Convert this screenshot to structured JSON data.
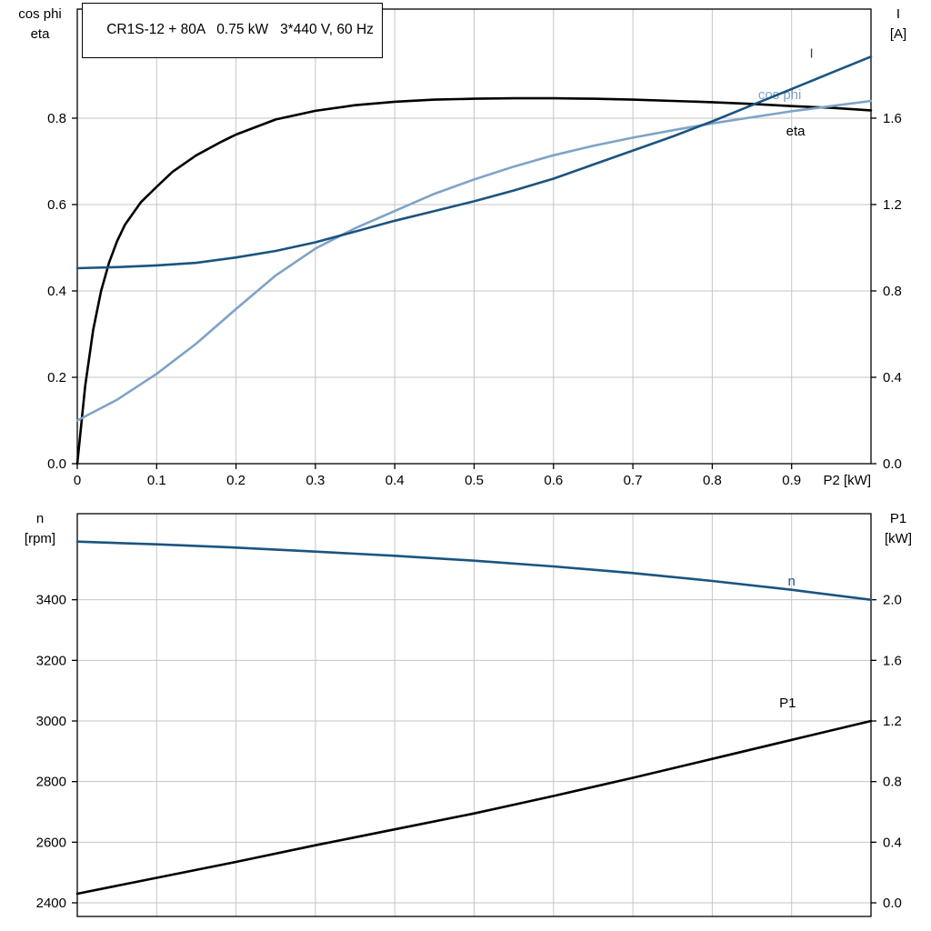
{
  "title_box": {
    "text": "CR1S-12 + 80A   0.75 kW   3*440 V, 60 Hz"
  },
  "colors": {
    "dark_blue": "#1b5480",
    "light_blue": "#7fa3c8",
    "black": "#000000",
    "grid": "#c6c6c6",
    "frame": "#000000"
  },
  "chart_data": [
    {
      "type": "line",
      "id": "motor-electrical",
      "x": {
        "min": 0,
        "max": 1.0,
        "axis_label": "P2 [kW]",
        "ticks": [
          0,
          0.1,
          0.2,
          0.3,
          0.4,
          0.5,
          0.6,
          0.7,
          0.8,
          0.9
        ],
        "labels": [
          "0",
          "0.1",
          "0.2",
          "0.3",
          "0.4",
          "0.5",
          "0.6",
          "0.7",
          "0.8",
          "0.9"
        ]
      },
      "left": {
        "title_lines": [
          "cos phi",
          "eta"
        ],
        "min": 0,
        "max": 1.0526,
        "ticks": [
          0,
          0.2,
          0.4,
          0.6,
          0.8
        ],
        "labels": [
          "0.0",
          "0.2",
          "0.4",
          "0.6",
          "0.8"
        ]
      },
      "right": {
        "title_lines": [
          "I",
          "[A]"
        ],
        "min": 0,
        "max": 2.105,
        "ticks": [
          0,
          0.4,
          0.8,
          1.2,
          1.6
        ],
        "labels": [
          "0.0",
          "0.4",
          "0.8",
          "1.2",
          "1.6"
        ]
      },
      "series": [
        {
          "name": "eta",
          "label": "eta",
          "axis": "left",
          "color": "black",
          "label_pos": [
            0.905,
            0.77
          ],
          "points": [
            [
              0,
              0
            ],
            [
              0.01,
              0.18
            ],
            [
              0.02,
              0.31
            ],
            [
              0.03,
              0.4
            ],
            [
              0.04,
              0.465
            ],
            [
              0.05,
              0.515
            ],
            [
              0.06,
              0.553
            ],
            [
              0.08,
              0.605
            ],
            [
              0.1,
              0.641
            ],
            [
              0.12,
              0.676
            ],
            [
              0.15,
              0.714
            ],
            [
              0.18,
              0.744
            ],
            [
              0.2,
              0.762
            ],
            [
              0.25,
              0.797
            ],
            [
              0.3,
              0.817
            ],
            [
              0.35,
              0.83
            ],
            [
              0.4,
              0.838
            ],
            [
              0.45,
              0.843
            ],
            [
              0.5,
              0.845
            ],
            [
              0.55,
              0.846
            ],
            [
              0.6,
              0.846
            ],
            [
              0.65,
              0.845
            ],
            [
              0.7,
              0.843
            ],
            [
              0.75,
              0.84
            ],
            [
              0.8,
              0.837
            ],
            [
              0.85,
              0.833
            ],
            [
              0.9,
              0.828
            ],
            [
              0.95,
              0.824
            ],
            [
              1.0,
              0.818
            ]
          ]
        },
        {
          "name": "cos-phi",
          "label": "cos phi",
          "axis": "left",
          "color": "light_blue",
          "label_pos": [
            0.885,
            0.855
          ],
          "points": [
            [
              0,
              0.1
            ],
            [
              0.05,
              0.148
            ],
            [
              0.1,
              0.208
            ],
            [
              0.15,
              0.278
            ],
            [
              0.2,
              0.358
            ],
            [
              0.25,
              0.436
            ],
            [
              0.3,
              0.498
            ],
            [
              0.35,
              0.545
            ],
            [
              0.4,
              0.585
            ],
            [
              0.45,
              0.625
            ],
            [
              0.5,
              0.658
            ],
            [
              0.55,
              0.688
            ],
            [
              0.6,
              0.714
            ],
            [
              0.65,
              0.736
            ],
            [
              0.7,
              0.755
            ],
            [
              0.75,
              0.772
            ],
            [
              0.8,
              0.788
            ],
            [
              0.85,
              0.802
            ],
            [
              0.9,
              0.816
            ],
            [
              0.95,
              0.828
            ],
            [
              1.0,
              0.84
            ]
          ]
        },
        {
          "name": "current",
          "label": "I",
          "axis": "right",
          "color": "dark_blue",
          "label_pos": [
            0.925,
            1.9
          ],
          "points": [
            [
              0,
              0.905
            ],
            [
              0.05,
              0.91
            ],
            [
              0.1,
              0.918
            ],
            [
              0.15,
              0.93
            ],
            [
              0.2,
              0.955
            ],
            [
              0.25,
              0.985
            ],
            [
              0.3,
              1.025
            ],
            [
              0.35,
              1.075
            ],
            [
              0.4,
              1.125
            ],
            [
              0.45,
              1.17
            ],
            [
              0.5,
              1.215
            ],
            [
              0.55,
              1.265
            ],
            [
              0.6,
              1.32
            ],
            [
              0.65,
              1.385
            ],
            [
              0.7,
              1.45
            ],
            [
              0.75,
              1.515
            ],
            [
              0.8,
              1.585
            ],
            [
              0.85,
              1.66
            ],
            [
              0.9,
              1.735
            ],
            [
              0.95,
              1.81
            ],
            [
              1.0,
              1.885
            ]
          ]
        }
      ]
    },
    {
      "type": "line",
      "id": "motor-speed-power",
      "x": {
        "min": 0,
        "max": 1.0,
        "axis_label": "",
        "ticks": [
          0,
          0.1,
          0.2,
          0.3,
          0.4,
          0.5,
          0.6,
          0.7,
          0.8,
          0.9
        ],
        "labels": null
      },
      "left": {
        "title_lines": [
          "n",
          "[rpm]"
        ],
        "min": 2355,
        "max": 3684,
        "ticks": [
          2400,
          2600,
          2800,
          3000,
          3200,
          3400
        ],
        "labels": [
          "2400",
          "2600",
          "2800",
          "3000",
          "3200",
          "3400"
        ]
      },
      "right": {
        "title_lines": [
          "P1",
          "[kW]"
        ],
        "min": -0.09,
        "max": 2.568,
        "ticks": [
          0,
          0.4,
          0.8,
          1.2,
          1.6,
          2.0
        ],
        "labels": [
          "0.0",
          "0.4",
          "0.8",
          "1.2",
          "1.6",
          "2.0"
        ]
      },
      "series": [
        {
          "name": "speed",
          "label": "n",
          "axis": "left",
          "color": "dark_blue",
          "label_pos": [
            0.9,
            3462
          ],
          "points": [
            [
              0,
              3592
            ],
            [
              0.1,
              3583
            ],
            [
              0.2,
              3572
            ],
            [
              0.3,
              3559
            ],
            [
              0.4,
              3545
            ],
            [
              0.5,
              3529
            ],
            [
              0.6,
              3510
            ],
            [
              0.7,
              3488
            ],
            [
              0.8,
              3462
            ],
            [
              0.9,
              3433
            ],
            [
              1.0,
              3400
            ]
          ]
        },
        {
          "name": "input-power",
          "label": "P1",
          "axis": "right",
          "color": "black",
          "label_pos": [
            0.895,
            1.32
          ],
          "points": [
            [
              0,
              0.06
            ],
            [
              0.1,
              0.165
            ],
            [
              0.2,
              0.27
            ],
            [
              0.3,
              0.38
            ],
            [
              0.4,
              0.485
            ],
            [
              0.5,
              0.59
            ],
            [
              0.6,
              0.705
            ],
            [
              0.7,
              0.825
            ],
            [
              0.8,
              0.95
            ],
            [
              0.9,
              1.075
            ],
            [
              1.0,
              1.2
            ]
          ]
        }
      ]
    }
  ]
}
